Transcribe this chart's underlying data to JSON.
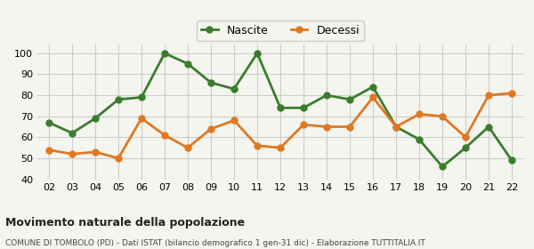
{
  "years": [
    "02",
    "03",
    "04",
    "05",
    "06",
    "07",
    "08",
    "09",
    "10",
    "11",
    "12",
    "13",
    "14",
    "15",
    "16",
    "17",
    "18",
    "19",
    "20",
    "21",
    "22"
  ],
  "nascite": [
    67,
    62,
    69,
    78,
    79,
    100,
    95,
    86,
    83,
    100,
    74,
    74,
    80,
    78,
    84,
    65,
    59,
    46,
    55,
    65,
    49
  ],
  "decessi": [
    54,
    52,
    53,
    50,
    69,
    61,
    55,
    64,
    68,
    56,
    55,
    66,
    65,
    65,
    79,
    65,
    71,
    70,
    60,
    80,
    81
  ],
  "nascite_color": "#3a7d2c",
  "decessi_color": "#e07820",
  "bg_color": "#f5f5f0",
  "grid_color": "#cccccc",
  "ylim": [
    40,
    104
  ],
  "yticks": [
    40,
    50,
    60,
    70,
    80,
    90,
    100
  ],
  "title": "Movimento naturale della popolazione",
  "subtitle": "COMUNE DI TOMBOLO (PD) - Dati ISTAT (bilancio demografico 1 gen-31 dic) - Elaborazione TUTTITALIA.IT",
  "legend_nascite": "Nascite",
  "legend_decessi": "Decessi",
  "marker_size": 5,
  "line_width": 2
}
